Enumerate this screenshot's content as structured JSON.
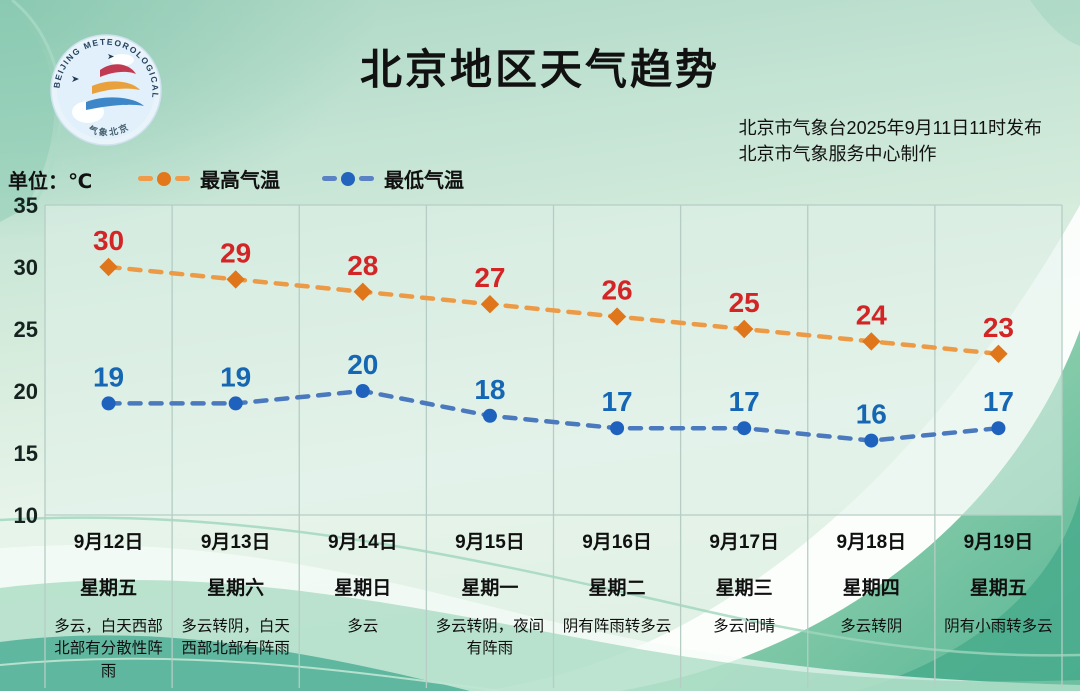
{
  "header": {
    "title": "北京地区天气趋势",
    "publish_line1": "北京市气象台2025年9月11日11时发布",
    "publish_line2": "北京市气象服务中心制作",
    "logo": {
      "ring_text": "BEIJING METEOROLOGICAL SERVICE",
      "bottom_text": "气象北京"
    }
  },
  "unit_label": "单位：℃",
  "legend": [
    {
      "label": "最高气温",
      "dash_color": "#ef9b49",
      "dot_color": "#e2771c"
    },
    {
      "label": "最低气温",
      "dash_color": "#5b82c4",
      "dot_color": "#2264bd"
    }
  ],
  "chart_data": {
    "type": "line",
    "title": "北京地区天气趋势",
    "categories": [
      "9月12日",
      "9月13日",
      "9月14日",
      "9月15日",
      "9月16日",
      "9月17日",
      "9月18日",
      "9月19日"
    ],
    "weekdays": [
      "星期五",
      "星期六",
      "星期日",
      "星期一",
      "星期二",
      "星期三",
      "星期四",
      "星期五"
    ],
    "weather": [
      "多云，白天西部北部有分散性阵雨",
      "多云转阴，白天西部北部有阵雨",
      "多云",
      "多云转阴，夜间有阵雨",
      "阴有阵雨转多云",
      "多云间晴",
      "多云转阴",
      "阴有小雨转多云"
    ],
    "series": [
      {
        "name": "最高气温",
        "values": [
          30,
          29,
          28,
          27,
          26,
          25,
          24,
          23
        ],
        "line_color": "#ec9a45",
        "marker_color": "#e0761b",
        "label_color": "#d32525",
        "marker": "diamond"
      },
      {
        "name": "最低气温",
        "values": [
          19,
          19,
          20,
          18,
          17,
          17,
          16,
          17
        ],
        "line_color": "#4b79bd",
        "marker_color": "#1f62be",
        "label_color": "#1566b3",
        "marker": "circle"
      }
    ],
    "ylabel": "单位：℃",
    "ylim": [
      10,
      35
    ],
    "yticks": [
      35,
      30,
      25,
      20,
      15,
      10
    ],
    "grid": "vertical-only",
    "line_style": "dashed",
    "legend_position": "top-left"
  }
}
